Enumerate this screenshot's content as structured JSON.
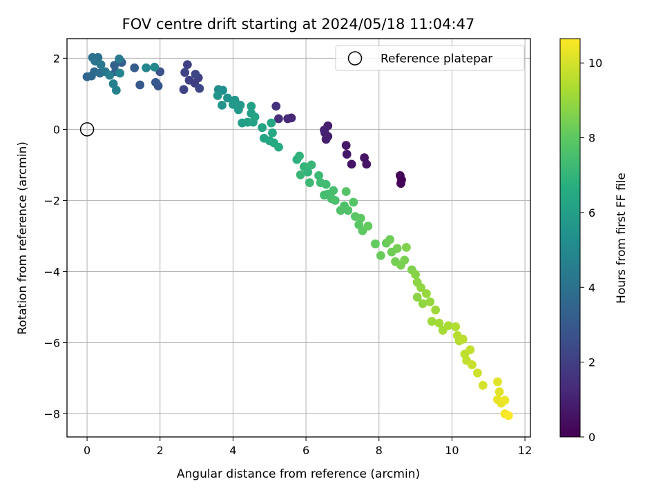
{
  "chart_data": {
    "type": "scatter",
    "title": "FOV centre drift starting at 2024/05/18 11:04:47",
    "xlabel": "Angular distance from reference (arcmin)",
    "ylabel": "Rotation from reference (arcmin)",
    "xlim": [
      -0.55,
      12.15
    ],
    "ylim": [
      -8.65,
      2.55
    ],
    "xticks": [
      0,
      2,
      4,
      6,
      8,
      10,
      12
    ],
    "yticks": [
      2,
      0,
      -2,
      -4,
      -6,
      -8
    ],
    "xtick_labels": [
      "0",
      "2",
      "4",
      "6",
      "8",
      "10",
      "12"
    ],
    "ytick_labels": [
      "2",
      "0",
      "−2",
      "−4",
      "−6",
      "−8"
    ],
    "grid": true,
    "legend": {
      "position": "top-right",
      "entries": [
        "Reference platepar"
      ]
    },
    "reference_point": {
      "x": 0,
      "y": 0
    },
    "colorbar": {
      "label": "Hours from first FF file",
      "colormap": "viridis",
      "range": [
        0,
        10.65
      ],
      "ticks": [
        0,
        2,
        4,
        6,
        8,
        10
      ],
      "tick_labels": [
        "0",
        "2",
        "4",
        "6",
        "8",
        "10"
      ]
    },
    "points": [
      {
        "x": 8.58,
        "y": -1.3,
        "h": 0.1
      },
      {
        "x": 8.62,
        "y": -1.42,
        "h": 0.1
      },
      {
        "x": 8.6,
        "y": -1.52,
        "h": 0.1
      },
      {
        "x": 7.6,
        "y": -0.8,
        "h": 0.6
      },
      {
        "x": 7.66,
        "y": -0.98,
        "h": 0.6
      },
      {
        "x": 7.25,
        "y": -0.98,
        "h": 0.6
      },
      {
        "x": 7.12,
        "y": -0.7,
        "h": 0.7
      },
      {
        "x": 7.1,
        "y": -0.45,
        "h": 0.7
      },
      {
        "x": 6.6,
        "y": 0.1,
        "h": 0.9
      },
      {
        "x": 6.52,
        "y": -0.1,
        "h": 0.9
      },
      {
        "x": 6.6,
        "y": -0.2,
        "h": 0.9
      },
      {
        "x": 6.55,
        "y": -0.28,
        "h": 0.9
      },
      {
        "x": 6.5,
        "y": -0.02,
        "h": 1.0
      },
      {
        "x": 5.6,
        "y": 0.32,
        "h": 1.2
      },
      {
        "x": 5.5,
        "y": 0.3,
        "h": 1.3
      },
      {
        "x": 5.25,
        "y": 0.3,
        "h": 1.4
      },
      {
        "x": 5.18,
        "y": 0.65,
        "h": 1.5
      },
      {
        "x": 3.05,
        "y": 1.45,
        "h": 2.0
      },
      {
        "x": 2.95,
        "y": 1.3,
        "h": 2.0
      },
      {
        "x": 2.75,
        "y": 1.82,
        "h": 2.1
      },
      {
        "x": 2.8,
        "y": 1.38,
        "h": 2.1
      },
      {
        "x": 2.65,
        "y": 1.12,
        "h": 2.2
      },
      {
        "x": 2.68,
        "y": 1.6,
        "h": 2.2
      },
      {
        "x": 3.08,
        "y": 1.15,
        "h": 2.3
      },
      {
        "x": 2.97,
        "y": 1.55,
        "h": 2.3
      },
      {
        "x": 2.0,
        "y": 1.62,
        "h": 2.7
      },
      {
        "x": 1.95,
        "y": 1.22,
        "h": 2.8
      },
      {
        "x": 1.88,
        "y": 1.32,
        "h": 2.9
      },
      {
        "x": 1.45,
        "y": 1.25,
        "h": 3.0
      },
      {
        "x": 1.3,
        "y": 1.73,
        "h": 3.1
      },
      {
        "x": 0.95,
        "y": 1.88,
        "h": 3.2
      },
      {
        "x": 0.75,
        "y": 1.8,
        "h": 3.3
      },
      {
        "x": 0.78,
        "y": 1.62,
        "h": 3.4
      },
      {
        "x": 0.0,
        "y": 1.48,
        "h": 3.5
      },
      {
        "x": 0.12,
        "y": 1.5,
        "h": 3.6
      },
      {
        "x": 0.2,
        "y": 1.62,
        "h": 3.7
      },
      {
        "x": 0.35,
        "y": 1.58,
        "h": 3.8
      },
      {
        "x": 0.3,
        "y": 2.02,
        "h": 3.9
      },
      {
        "x": 0.15,
        "y": 2.02,
        "h": 4.0
      },
      {
        "x": 0.22,
        "y": 1.92,
        "h": 4.1
      },
      {
        "x": 0.5,
        "y": 1.62,
        "h": 4.2
      },
      {
        "x": 0.38,
        "y": 1.82,
        "h": 4.3
      },
      {
        "x": 0.88,
        "y": 1.98,
        "h": 4.4
      },
      {
        "x": 0.62,
        "y": 1.52,
        "h": 4.5
      },
      {
        "x": 0.72,
        "y": 1.28,
        "h": 4.6
      },
      {
        "x": 0.8,
        "y": 1.1,
        "h": 4.7
      },
      {
        "x": 0.9,
        "y": 1.58,
        "h": 4.8
      },
      {
        "x": 1.62,
        "y": 1.73,
        "h": 4.9
      },
      {
        "x": 1.85,
        "y": 1.75,
        "h": 5.0
      },
      {
        "x": 3.6,
        "y": 1.12,
        "h": 5.2
      },
      {
        "x": 3.72,
        "y": 1.1,
        "h": 5.3
      },
      {
        "x": 3.85,
        "y": 0.88,
        "h": 5.4
      },
      {
        "x": 3.7,
        "y": 0.68,
        "h": 5.5
      },
      {
        "x": 3.58,
        "y": 0.95,
        "h": 5.5
      },
      {
        "x": 4.05,
        "y": 0.82,
        "h": 5.6
      },
      {
        "x": 4.2,
        "y": 0.68,
        "h": 5.7
      },
      {
        "x": 4.15,
        "y": 0.55,
        "h": 5.8
      },
      {
        "x": 4.0,
        "y": 0.7,
        "h": 5.8
      },
      {
        "x": 4.25,
        "y": 0.18,
        "h": 5.9
      },
      {
        "x": 4.4,
        "y": 0.2,
        "h": 6.0
      },
      {
        "x": 4.5,
        "y": 0.45,
        "h": 6.0
      },
      {
        "x": 4.5,
        "y": 0.65,
        "h": 6.1
      },
      {
        "x": 4.55,
        "y": 0.2,
        "h": 6.1
      },
      {
        "x": 4.6,
        "y": 0.35,
        "h": 6.2
      },
      {
        "x": 4.8,
        "y": 0.05,
        "h": 6.2
      },
      {
        "x": 4.85,
        "y": -0.25,
        "h": 6.3
      },
      {
        "x": 5.05,
        "y": 0.18,
        "h": 6.3
      },
      {
        "x": 5.08,
        "y": -0.1,
        "h": 6.4
      },
      {
        "x": 5.0,
        "y": -0.32,
        "h": 6.4
      },
      {
        "x": 5.12,
        "y": -0.38,
        "h": 6.5
      },
      {
        "x": 5.25,
        "y": -0.5,
        "h": 6.5
      },
      {
        "x": 5.75,
        "y": -0.85,
        "h": 6.8
      },
      {
        "x": 5.82,
        "y": -0.75,
        "h": 6.9
      },
      {
        "x": 5.95,
        "y": -1.05,
        "h": 7.0
      },
      {
        "x": 6.05,
        "y": -1.2,
        "h": 7.0
      },
      {
        "x": 5.85,
        "y": -1.28,
        "h": 7.1
      },
      {
        "x": 6.15,
        "y": -1.0,
        "h": 7.1
      },
      {
        "x": 6.1,
        "y": -1.5,
        "h": 7.2
      },
      {
        "x": 6.35,
        "y": -1.3,
        "h": 7.2
      },
      {
        "x": 6.4,
        "y": -1.5,
        "h": 7.3
      },
      {
        "x": 6.55,
        "y": -1.55,
        "h": 7.3
      },
      {
        "x": 6.6,
        "y": -1.82,
        "h": 7.4
      },
      {
        "x": 6.5,
        "y": -1.85,
        "h": 7.4
      },
      {
        "x": 6.75,
        "y": -1.72,
        "h": 7.5
      },
      {
        "x": 6.7,
        "y": -1.95,
        "h": 7.5
      },
      {
        "x": 6.8,
        "y": -2.0,
        "h": 7.6
      },
      {
        "x": 7.05,
        "y": -2.15,
        "h": 7.6
      },
      {
        "x": 6.95,
        "y": -2.28,
        "h": 7.7
      },
      {
        "x": 7.15,
        "y": -2.28,
        "h": 7.7
      },
      {
        "x": 7.1,
        "y": -1.75,
        "h": 7.8
      },
      {
        "x": 7.3,
        "y": -2.05,
        "h": 7.8
      },
      {
        "x": 7.35,
        "y": -2.45,
        "h": 7.9
      },
      {
        "x": 7.45,
        "y": -2.68,
        "h": 7.9
      },
      {
        "x": 7.5,
        "y": -2.5,
        "h": 8.0
      },
      {
        "x": 7.55,
        "y": -2.85,
        "h": 8.0
      },
      {
        "x": 7.7,
        "y": -2.72,
        "h": 8.1
      },
      {
        "x": 7.9,
        "y": -3.22,
        "h": 8.1
      },
      {
        "x": 8.05,
        "y": -3.55,
        "h": 8.2
      },
      {
        "x": 8.2,
        "y": -3.2,
        "h": 8.2
      },
      {
        "x": 8.3,
        "y": -3.1,
        "h": 8.3
      },
      {
        "x": 8.35,
        "y": -3.45,
        "h": 8.3
      },
      {
        "x": 8.5,
        "y": -3.35,
        "h": 8.4
      },
      {
        "x": 8.45,
        "y": -3.72,
        "h": 8.4
      },
      {
        "x": 8.6,
        "y": -3.82,
        "h": 8.5
      },
      {
        "x": 8.7,
        "y": -3.68,
        "h": 8.5
      },
      {
        "x": 8.75,
        "y": -3.32,
        "h": 8.6
      },
      {
        "x": 8.9,
        "y": -3.95,
        "h": 8.6
      },
      {
        "x": 9.0,
        "y": -4.08,
        "h": 8.7
      },
      {
        "x": 9.05,
        "y": -4.3,
        "h": 8.8
      },
      {
        "x": 9.05,
        "y": -4.72,
        "h": 8.8
      },
      {
        "x": 9.15,
        "y": -4.45,
        "h": 8.9
      },
      {
        "x": 9.2,
        "y": -4.9,
        "h": 8.9
      },
      {
        "x": 9.3,
        "y": -4.62,
        "h": 9.0
      },
      {
        "x": 9.4,
        "y": -4.85,
        "h": 9.0
      },
      {
        "x": 9.45,
        "y": -5.4,
        "h": 9.1
      },
      {
        "x": 9.55,
        "y": -5.08,
        "h": 9.1
      },
      {
        "x": 9.65,
        "y": -5.45,
        "h": 9.2
      },
      {
        "x": 9.75,
        "y": -5.65,
        "h": 9.2
      },
      {
        "x": 9.9,
        "y": -5.52,
        "h": 9.3
      },
      {
        "x": 10.1,
        "y": -5.55,
        "h": 9.4
      },
      {
        "x": 10.15,
        "y": -5.8,
        "h": 9.5
      },
      {
        "x": 10.2,
        "y": -5.95,
        "h": 9.5
      },
      {
        "x": 10.3,
        "y": -5.9,
        "h": 9.6
      },
      {
        "x": 10.35,
        "y": -6.32,
        "h": 9.6
      },
      {
        "x": 10.4,
        "y": -6.5,
        "h": 9.7
      },
      {
        "x": 10.5,
        "y": -6.2,
        "h": 9.7
      },
      {
        "x": 10.55,
        "y": -6.62,
        "h": 9.8
      },
      {
        "x": 10.7,
        "y": -6.85,
        "h": 9.9
      },
      {
        "x": 10.85,
        "y": -7.2,
        "h": 10.0
      },
      {
        "x": 11.25,
        "y": -7.1,
        "h": 10.2
      },
      {
        "x": 11.3,
        "y": -7.38,
        "h": 10.2
      },
      {
        "x": 11.25,
        "y": -7.6,
        "h": 10.3
      },
      {
        "x": 11.35,
        "y": -7.7,
        "h": 10.3
      },
      {
        "x": 11.45,
        "y": -7.62,
        "h": 10.4
      },
      {
        "x": 11.45,
        "y": -8.0,
        "h": 10.5
      },
      {
        "x": 11.55,
        "y": -8.05,
        "h": 10.6
      }
    ]
  }
}
